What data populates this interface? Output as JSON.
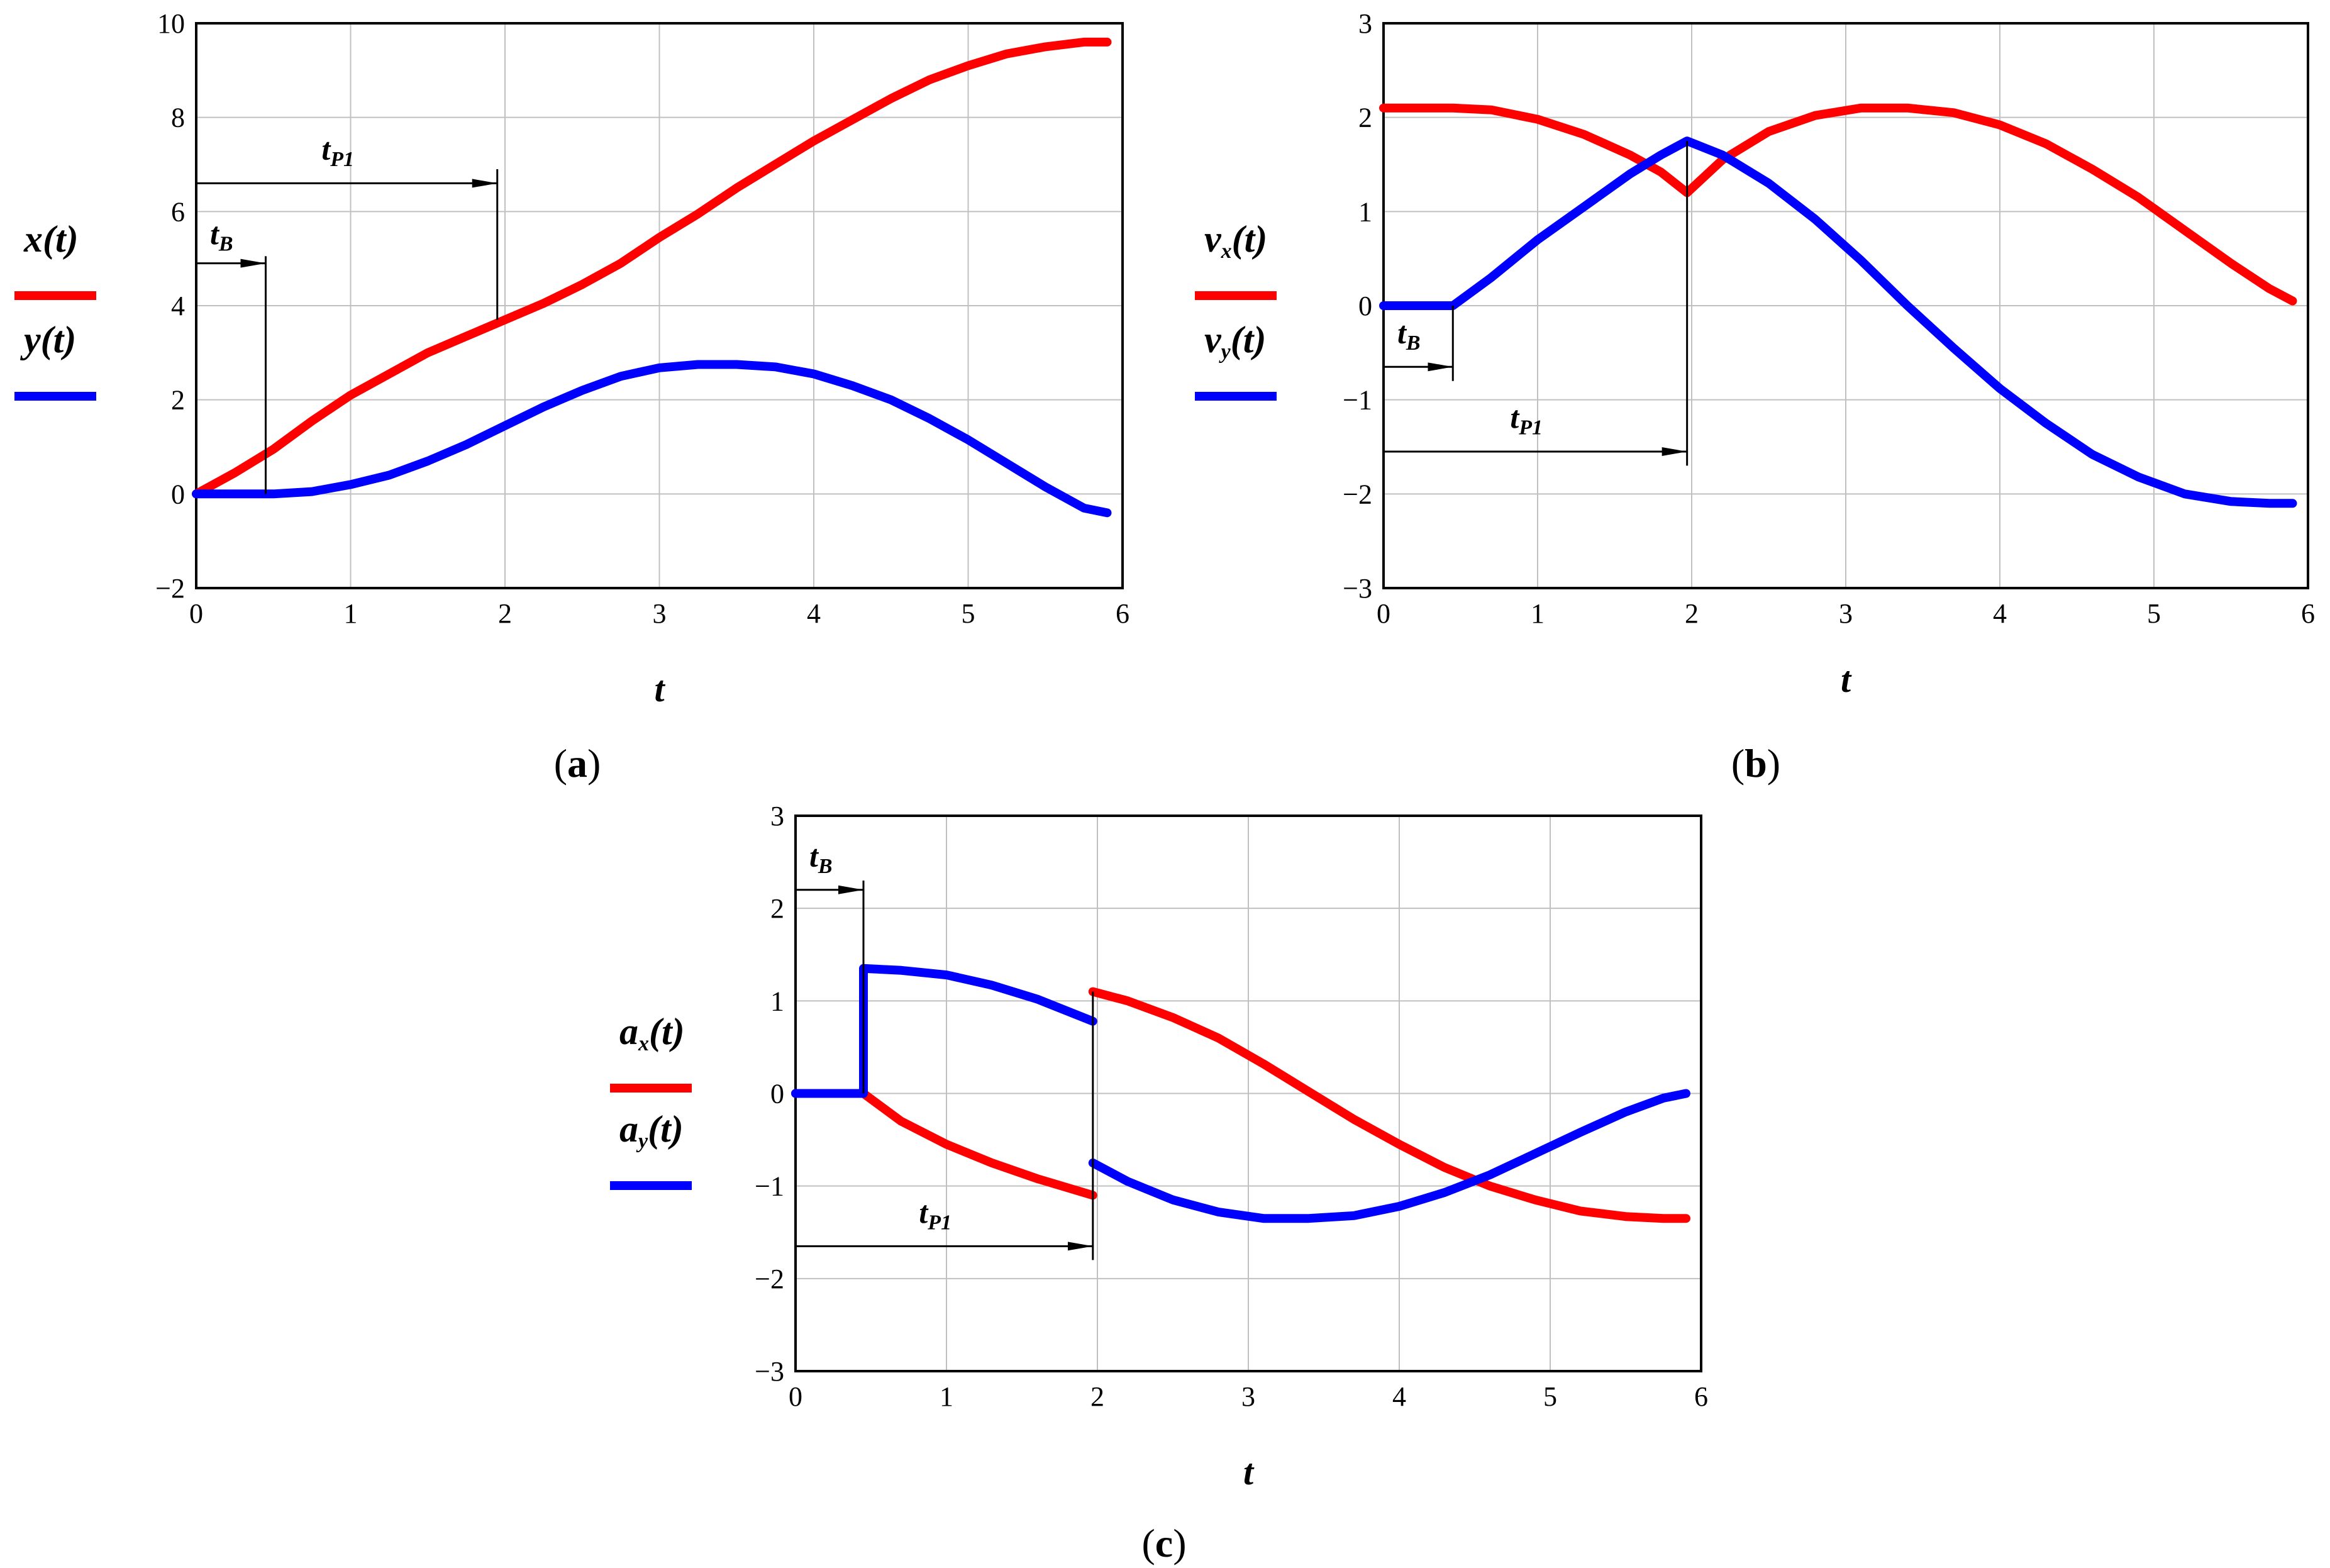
{
  "colors": {
    "series1": "#ff0000",
    "series2": "#0000ff",
    "grid": "#c0c0c0",
    "axis": "#000000"
  },
  "chart_data": [
    {
      "panel": "(a)",
      "caption": {
        "open": "(",
        "letter": "a",
        "close": ")"
      },
      "type": "line",
      "xlabel": "t",
      "xlim": [
        0,
        6
      ],
      "ylim": [
        -2,
        10
      ],
      "xticks": [
        0,
        1,
        2,
        3,
        4,
        5,
        6
      ],
      "yticks": [
        -2,
        0,
        2,
        4,
        6,
        8,
        10
      ],
      "grid": true,
      "legend_position": "left",
      "series": [
        {
          "name": "x(t)",
          "color": "#ff0000",
          "label_base": "x",
          "label_sub": "",
          "label_tail": "(t)",
          "x": [
            0,
            0.25,
            0.5,
            0.75,
            1.0,
            1.25,
            1.5,
            1.75,
            2.0,
            2.25,
            2.5,
            2.75,
            3.0,
            3.25,
            3.5,
            3.75,
            4.0,
            4.25,
            4.5,
            4.75,
            5.0,
            5.25,
            5.5,
            5.75,
            5.9
          ],
          "y": [
            0,
            0.45,
            0.95,
            1.55,
            2.1,
            2.55,
            3.0,
            3.35,
            3.7,
            4.05,
            4.45,
            4.9,
            5.45,
            5.95,
            6.5,
            7.0,
            7.5,
            7.95,
            8.4,
            8.8,
            9.1,
            9.35,
            9.5,
            9.6,
            9.6
          ]
        },
        {
          "name": "y(t)",
          "color": "#0000ff",
          "label_base": "y",
          "label_sub": "",
          "label_tail": "(t)",
          "x": [
            0,
            0.25,
            0.5,
            0.75,
            1.0,
            1.25,
            1.5,
            1.75,
            2.0,
            2.25,
            2.5,
            2.75,
            3.0,
            3.25,
            3.5,
            3.75,
            4.0,
            4.25,
            4.5,
            4.75,
            5.0,
            5.25,
            5.5,
            5.75,
            5.9
          ],
          "y": [
            0,
            0,
            0,
            0.05,
            0.2,
            0.4,
            0.7,
            1.05,
            1.45,
            1.85,
            2.2,
            2.5,
            2.68,
            2.75,
            2.75,
            2.7,
            2.55,
            2.3,
            2.0,
            1.6,
            1.15,
            0.65,
            0.15,
            -0.3,
            -0.4
          ]
        }
      ],
      "annotations": [
        {
          "label_base": "t",
          "label_sub": "B",
          "x_from": 0,
          "x_to": 0.45,
          "y_arrow": 4.9,
          "y_label": 5.3,
          "vline_from": 0,
          "vline_to": 5.05
        },
        {
          "label_base": "t",
          "label_sub": "P1",
          "x_from": 0,
          "x_to": 1.95,
          "y_arrow": 6.6,
          "y_label": 7.1,
          "vline_from": 3.7,
          "vline_to": 6.9
        }
      ]
    },
    {
      "panel": "(b)",
      "caption": {
        "open": "(",
        "letter": "b",
        "close": ")"
      },
      "type": "line",
      "xlabel": "t",
      "xlim": [
        0,
        6
      ],
      "ylim": [
        -3,
        3
      ],
      "xticks": [
        0,
        1,
        2,
        3,
        4,
        5,
        6
      ],
      "yticks": [
        -3,
        -2,
        -1,
        0,
        1,
        2,
        3
      ],
      "grid": true,
      "legend_position": "left",
      "series": [
        {
          "name": "vx(t)",
          "color": "#ff0000",
          "label_base": "v",
          "label_sub": "x",
          "label_tail": "(t)",
          "x": [
            0,
            0.45,
            0.7,
            1.0,
            1.3,
            1.6,
            1.8,
            1.97,
            2.2,
            2.5,
            2.8,
            3.1,
            3.4,
            3.7,
            4.0,
            4.3,
            4.6,
            4.9,
            5.2,
            5.5,
            5.75,
            5.9
          ],
          "y": [
            2.1,
            2.1,
            2.08,
            1.98,
            1.82,
            1.6,
            1.42,
            1.2,
            1.55,
            1.85,
            2.02,
            2.1,
            2.1,
            2.05,
            1.92,
            1.72,
            1.45,
            1.15,
            0.8,
            0.45,
            0.18,
            0.05
          ]
        },
        {
          "name": "vy(t)",
          "color": "#0000ff",
          "label_base": "v",
          "label_sub": "y",
          "label_tail": "(t)",
          "x": [
            0,
            0.45,
            0.7,
            1.0,
            1.3,
            1.6,
            1.8,
            1.97,
            2.2,
            2.5,
            2.8,
            3.1,
            3.4,
            3.7,
            4.0,
            4.3,
            4.6,
            4.9,
            5.2,
            5.5,
            5.75,
            5.9
          ],
          "y": [
            0,
            0,
            0.3,
            0.7,
            1.05,
            1.4,
            1.6,
            1.75,
            1.6,
            1.3,
            0.92,
            0.48,
            0.0,
            -0.45,
            -0.88,
            -1.25,
            -1.58,
            -1.82,
            -2.0,
            -2.08,
            -2.1,
            -2.1
          ]
        }
      ],
      "annotations": [
        {
          "label_base": "t",
          "label_sub": "B",
          "x_from": 0,
          "x_to": 0.45,
          "y_arrow": -0.65,
          "y_label": -0.4,
          "vline_from": 0,
          "vline_to": -0.8
        },
        {
          "label_base": "t",
          "label_sub": "P1",
          "x_from": 0,
          "x_to": 1.97,
          "y_arrow": -1.55,
          "y_label": -1.3,
          "vline_from": 1.75,
          "vline_to": -1.7
        }
      ]
    },
    {
      "panel": "(c)",
      "caption": {
        "open": "(",
        "letter": "c",
        "close": ")"
      },
      "type": "line",
      "xlabel": "t",
      "xlim": [
        0,
        6
      ],
      "ylim": [
        -3,
        3
      ],
      "xticks": [
        0,
        1,
        2,
        3,
        4,
        5,
        6
      ],
      "yticks": [
        -3,
        -2,
        -1,
        0,
        1,
        2,
        3
      ],
      "grid": true,
      "legend_position": "left",
      "series": [
        {
          "name": "ax(t)",
          "color": "#ff0000",
          "label_base": "a",
          "label_sub": "x",
          "label_tail": "(t)",
          "x": [
            0,
            0.45,
            0.7,
            1.0,
            1.3,
            1.6,
            1.97,
            null,
            1.97,
            2.2,
            2.5,
            2.8,
            3.1,
            3.4,
            3.7,
            4.0,
            4.3,
            4.6,
            4.9,
            5.2,
            5.5,
            5.75,
            5.9
          ],
          "y": [
            0,
            0,
            -0.3,
            -0.55,
            -0.75,
            -0.92,
            -1.1,
            null,
            1.1,
            1.0,
            0.82,
            0.6,
            0.32,
            0.02,
            -0.28,
            -0.55,
            -0.8,
            -1.0,
            -1.15,
            -1.27,
            -1.33,
            -1.35,
            -1.35
          ]
        },
        {
          "name": "ay(t)",
          "color": "#0000ff",
          "label_base": "a",
          "label_sub": "y",
          "label_tail": "(t)",
          "x": [
            0,
            0.45,
            0.45,
            0.7,
            1.0,
            1.3,
            1.6,
            1.97,
            null,
            1.97,
            2.2,
            2.5,
            2.8,
            3.1,
            3.4,
            3.7,
            4.0,
            4.3,
            4.6,
            4.9,
            5.2,
            5.5,
            5.75,
            5.9
          ],
          "y": [
            0,
            0,
            1.35,
            1.33,
            1.28,
            1.17,
            1.02,
            0.78,
            null,
            -0.75,
            -0.95,
            -1.15,
            -1.28,
            -1.35,
            -1.35,
            -1.32,
            -1.22,
            -1.07,
            -0.88,
            -0.65,
            -0.42,
            -0.2,
            -0.05,
            0.0
          ]
        }
      ],
      "annotations": [
        {
          "label_base": "t",
          "label_sub": "B",
          "x_from": 0,
          "x_to": 0.45,
          "y_arrow": 2.2,
          "y_label": 2.45,
          "vline_from": 0,
          "vline_to": 2.3
        },
        {
          "label_base": "t",
          "label_sub": "P1",
          "x_from": 0,
          "x_to": 1.97,
          "y_arrow": -1.65,
          "y_label": -1.4,
          "vline_from": 1.1,
          "vline_to": -1.8
        }
      ]
    }
  ]
}
